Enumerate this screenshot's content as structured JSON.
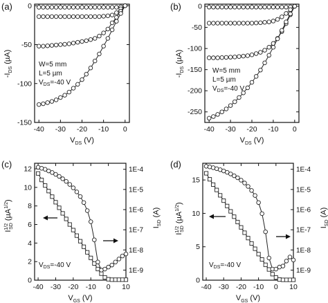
{
  "chart_data": [
    {
      "panel": "(a)",
      "type": "line",
      "xlabel_main": "V",
      "xlabel_sub": "DS",
      "xlabel_unit": "(V)",
      "ylabel_prefix": "-I",
      "ylabel_sub": "DS",
      "ylabel_unit": "(µA)",
      "xlim": [
        -42,
        2
      ],
      "ylim": [
        -150,
        2
      ],
      "xticks": [
        -40,
        -30,
        -20,
        -10,
        0
      ],
      "yticks": [
        0,
        -50,
        -100,
        -150
      ],
      "annotation": [
        "W=5 mm",
        "L=5 µm",
        "V_DS=-40 V"
      ],
      "series": [
        {
          "x": [
            -40,
            -38,
            -36,
            -34,
            -32,
            -30,
            -28,
            -26,
            -24,
            -22,
            -20,
            -18,
            -16,
            -14,
            -12,
            -10,
            -8,
            -6,
            -4,
            -2,
            0
          ],
          "values": [
            -2,
            -2,
            -2,
            -2,
            -2,
            -2,
            -2,
            -2,
            -2,
            -2,
            -2,
            -2,
            -2,
            -2,
            -2,
            -2,
            -2,
            -2,
            -2,
            -1.5,
            0
          ]
        },
        {
          "x": [
            -40,
            -38,
            -36,
            -34,
            -32,
            -30,
            -28,
            -26,
            -24,
            -22,
            -20,
            -18,
            -16,
            -14,
            -12,
            -10,
            -8,
            -6,
            -4,
            -2,
            0
          ],
          "values": [
            -14,
            -14,
            -14,
            -14,
            -14,
            -14,
            -14,
            -14,
            -14,
            -14,
            -14,
            -14,
            -14,
            -14,
            -14,
            -13.5,
            -13,
            -12,
            -9,
            -4,
            0
          ]
        },
        {
          "x": [
            -40,
            -38,
            -36,
            -34,
            -32,
            -30,
            -28,
            -26,
            -24,
            -22,
            -20,
            -18,
            -16,
            -14,
            -12,
            -10,
            -8,
            -6,
            -4,
            -2,
            0
          ],
          "values": [
            -52,
            -52,
            -51.5,
            -51,
            -50.5,
            -50,
            -49.5,
            -49,
            -48,
            -47,
            -46,
            -45,
            -43.5,
            -42,
            -39,
            -35,
            -30,
            -22,
            -15,
            -7,
            0
          ]
        },
        {
          "x": [
            -40,
            -38,
            -36,
            -34,
            -32,
            -30,
            -28,
            -26,
            -24,
            -22,
            -20,
            -18,
            -16,
            -14,
            -12,
            -10,
            -8,
            -6,
            -4,
            -2,
            0
          ],
          "values": [
            -127,
            -126,
            -124.5,
            -123,
            -121,
            -118,
            -115,
            -111,
            -106,
            -101,
            -95,
            -88,
            -80,
            -71,
            -62,
            -52,
            -42,
            -31,
            -20,
            -10,
            0
          ]
        }
      ]
    },
    {
      "panel": "(b)",
      "type": "line",
      "xlabel_main": "V",
      "xlabel_sub": "DS",
      "xlabel_unit": "(V)",
      "ylabel_prefix": "-I",
      "ylabel_sub": "DS",
      "ylabel_unit": "(µA)",
      "xlim": [
        -42,
        2
      ],
      "ylim": [
        -275,
        5
      ],
      "xticks": [
        -40,
        -30,
        -20,
        -10,
        0
      ],
      "yticks": [
        0,
        -50,
        -100,
        -150,
        -200,
        -250
      ],
      "annotation": [
        "W=5 mm",
        "L=5 µm",
        "V_DS=-40 V"
      ],
      "series": [
        {
          "x": [
            -40,
            -38,
            -36,
            -34,
            -32,
            -30,
            -28,
            -26,
            -24,
            -22,
            -20,
            -18,
            -16,
            -14,
            -12,
            -10,
            -8,
            -6,
            -4,
            -2,
            0
          ],
          "values": [
            -2,
            -2,
            -2,
            -2,
            -2,
            -2,
            -2,
            -2,
            -2,
            -2,
            -2,
            -2,
            -2,
            -2,
            -2,
            -2,
            -2,
            -2,
            -2,
            -1.5,
            0
          ]
        },
        {
          "x": [
            -40,
            -38,
            -36,
            -34,
            -32,
            -30,
            -28,
            -26,
            -24,
            -22,
            -20,
            -18,
            -16,
            -14,
            -12,
            -10,
            -8,
            -6,
            -4,
            -2,
            0
          ],
          "values": [
            -40,
            -40,
            -40,
            -40,
            -40,
            -40,
            -40,
            -40,
            -40,
            -40,
            -40,
            -39.5,
            -39,
            -38,
            -37,
            -35,
            -31,
            -25,
            -17,
            -8,
            0
          ]
        },
        {
          "x": [
            -40,
            -38,
            -36,
            -34,
            -32,
            -30,
            -28,
            -26,
            -24,
            -22,
            -20,
            -18,
            -16,
            -14,
            -12,
            -10,
            -8,
            -6,
            -4,
            -2,
            0
          ],
          "values": [
            -122,
            -122,
            -122,
            -121.5,
            -121,
            -120.5,
            -120,
            -119,
            -118,
            -117,
            -115,
            -112,
            -109,
            -104,
            -97,
            -88,
            -76,
            -60,
            -41,
            -20,
            0
          ]
        },
        {
          "x": [
            -40,
            -38,
            -36,
            -34,
            -32,
            -30,
            -28,
            -26,
            -24,
            -22,
            -20,
            -18,
            -16,
            -14,
            -12,
            -10,
            -8,
            -6,
            -4,
            -2,
            0
          ],
          "values": [
            -265,
            -261,
            -256,
            -250,
            -243,
            -235,
            -226,
            -216,
            -205,
            -193,
            -180,
            -166,
            -151,
            -134,
            -116,
            -97,
            -77,
            -57,
            -37,
            -18,
            0
          ]
        }
      ]
    },
    {
      "panel": "(c)",
      "type": "line",
      "xlabel_main": "V",
      "xlabel_sub": "GS",
      "xlabel_unit": "(V)",
      "ylabel_prefix": "I",
      "ylabel_sub": "SD",
      "ylabel_sup": "1/2",
      "ylabel_unit": "(µA",
      "ylabel_unit_sup": "1/2",
      "ylabel_unit_close": ")",
      "y2label_prefix": "I",
      "y2label_sub": "SD",
      "y2label_unit": "(A)",
      "xlim": [
        -42,
        10
      ],
      "ylim": [
        0,
        12.6
      ],
      "xticks": [
        -40,
        -30,
        -20,
        -10,
        0,
        10
      ],
      "yticks": [
        0,
        2,
        4,
        6,
        8,
        10,
        12
      ],
      "y2lim": [
        -9.5,
        -3.7
      ],
      "y2ticks": [
        "1E-9",
        "1E-8",
        "1E-7",
        "1E-6",
        "1E-5",
        "1E-4"
      ],
      "annotation": [
        "V_DS=-40 V"
      ],
      "series": [
        {
          "axis": "left",
          "marker": "square",
          "x": [
            -40,
            -38,
            -36,
            -34,
            -32,
            -30,
            -28,
            -26,
            -24,
            -22,
            -20,
            -18,
            -16,
            -14,
            -12,
            -10,
            -8,
            -6,
            -4,
            -2,
            0,
            2,
            4,
            6,
            8,
            10
          ],
          "values": [
            11.5,
            10.8,
            10.2,
            9.6,
            9.0,
            8.4,
            7.8,
            7.2,
            6.6,
            6.0,
            5.4,
            4.8,
            4.2,
            3.6,
            3.0,
            2.4,
            1.8,
            1.2,
            0.7,
            0.3,
            0.1,
            0.05,
            0.05,
            0.05,
            0.05,
            0.05
          ]
        },
        {
          "axis": "right",
          "marker": "circle",
          "x": [
            -40,
            -38,
            -36,
            -34,
            -32,
            -30,
            -28,
            -26,
            -24,
            -22,
            -20,
            -18,
            -16,
            -14,
            -12,
            -10,
            -8,
            -6,
            -4,
            -2,
            0,
            2,
            4,
            6,
            8,
            10
          ],
          "values": [
            -3.9,
            -3.95,
            -4.0,
            -4.08,
            -4.16,
            -4.25,
            -4.35,
            -4.47,
            -4.6,
            -4.75,
            -4.92,
            -5.12,
            -5.35,
            -5.65,
            -6.05,
            -6.6,
            -7.5,
            -8.6,
            -9.0,
            -8.95,
            -8.85,
            -8.75,
            -8.6,
            -8.45,
            -8.3,
            -8.2
          ]
        }
      ]
    },
    {
      "panel": "(d)",
      "type": "line",
      "xlabel_main": "V",
      "xlabel_sub": "GS",
      "xlabel_unit": "(V)",
      "ylabel_prefix": "I",
      "ylabel_sub": "SD",
      "ylabel_sup": "1/2",
      "ylabel_unit": "(µA",
      "ylabel_unit_sup": "1/2",
      "ylabel_unit_close": ")",
      "y2label_prefix": "I",
      "y2label_sub": "SD",
      "y2label_unit": "(A)",
      "xlim": [
        -42,
        10
      ],
      "ylim": [
        0,
        17.5
      ],
      "xticks": [
        -40,
        -30,
        -20,
        -10,
        0,
        10
      ],
      "yticks": [
        0,
        5,
        10,
        15
      ],
      "y2lim": [
        -9.5,
        -3.7
      ],
      "y2ticks": [
        "1E-9",
        "1E-8",
        "1E-7",
        "1E-6",
        "1E-5",
        "1E-4"
      ],
      "annotation": [
        "V_DS=-40 V"
      ],
      "series": [
        {
          "axis": "left",
          "marker": "square",
          "x": [
            -40,
            -38,
            -36,
            -34,
            -32,
            -30,
            -28,
            -26,
            -24,
            -22,
            -20,
            -18,
            -16,
            -14,
            -12,
            -10,
            -8,
            -6,
            -4,
            -2,
            0,
            2,
            4,
            6,
            8,
            10
          ],
          "values": [
            16.0,
            15.1,
            14.3,
            13.5,
            12.7,
            11.9,
            11.1,
            10.3,
            9.5,
            8.7,
            7.9,
            7.1,
            6.3,
            5.5,
            4.7,
            3.9,
            3.1,
            2.3,
            1.6,
            0.9,
            0.4,
            0.1,
            0.05,
            0.05,
            0.05,
            0.05
          ]
        },
        {
          "axis": "right",
          "marker": "circle",
          "x": [
            -40,
            -38,
            -36,
            -34,
            -32,
            -30,
            -28,
            -26,
            -24,
            -22,
            -20,
            -18,
            -16,
            -14,
            -12,
            -10,
            -8,
            -6,
            -4,
            -2,
            0,
            2,
            4,
            6,
            8,
            10
          ],
          "values": [
            -3.85,
            -3.88,
            -3.92,
            -3.97,
            -4.02,
            -4.08,
            -4.15,
            -4.23,
            -4.32,
            -4.42,
            -4.54,
            -4.68,
            -4.85,
            -5.05,
            -5.3,
            -5.65,
            -6.2,
            -7.1,
            -8.4,
            -8.95,
            -8.95,
            -8.85,
            -8.8,
            -8.55,
            -8.35,
            -8.5
          ]
        }
      ]
    }
  ]
}
